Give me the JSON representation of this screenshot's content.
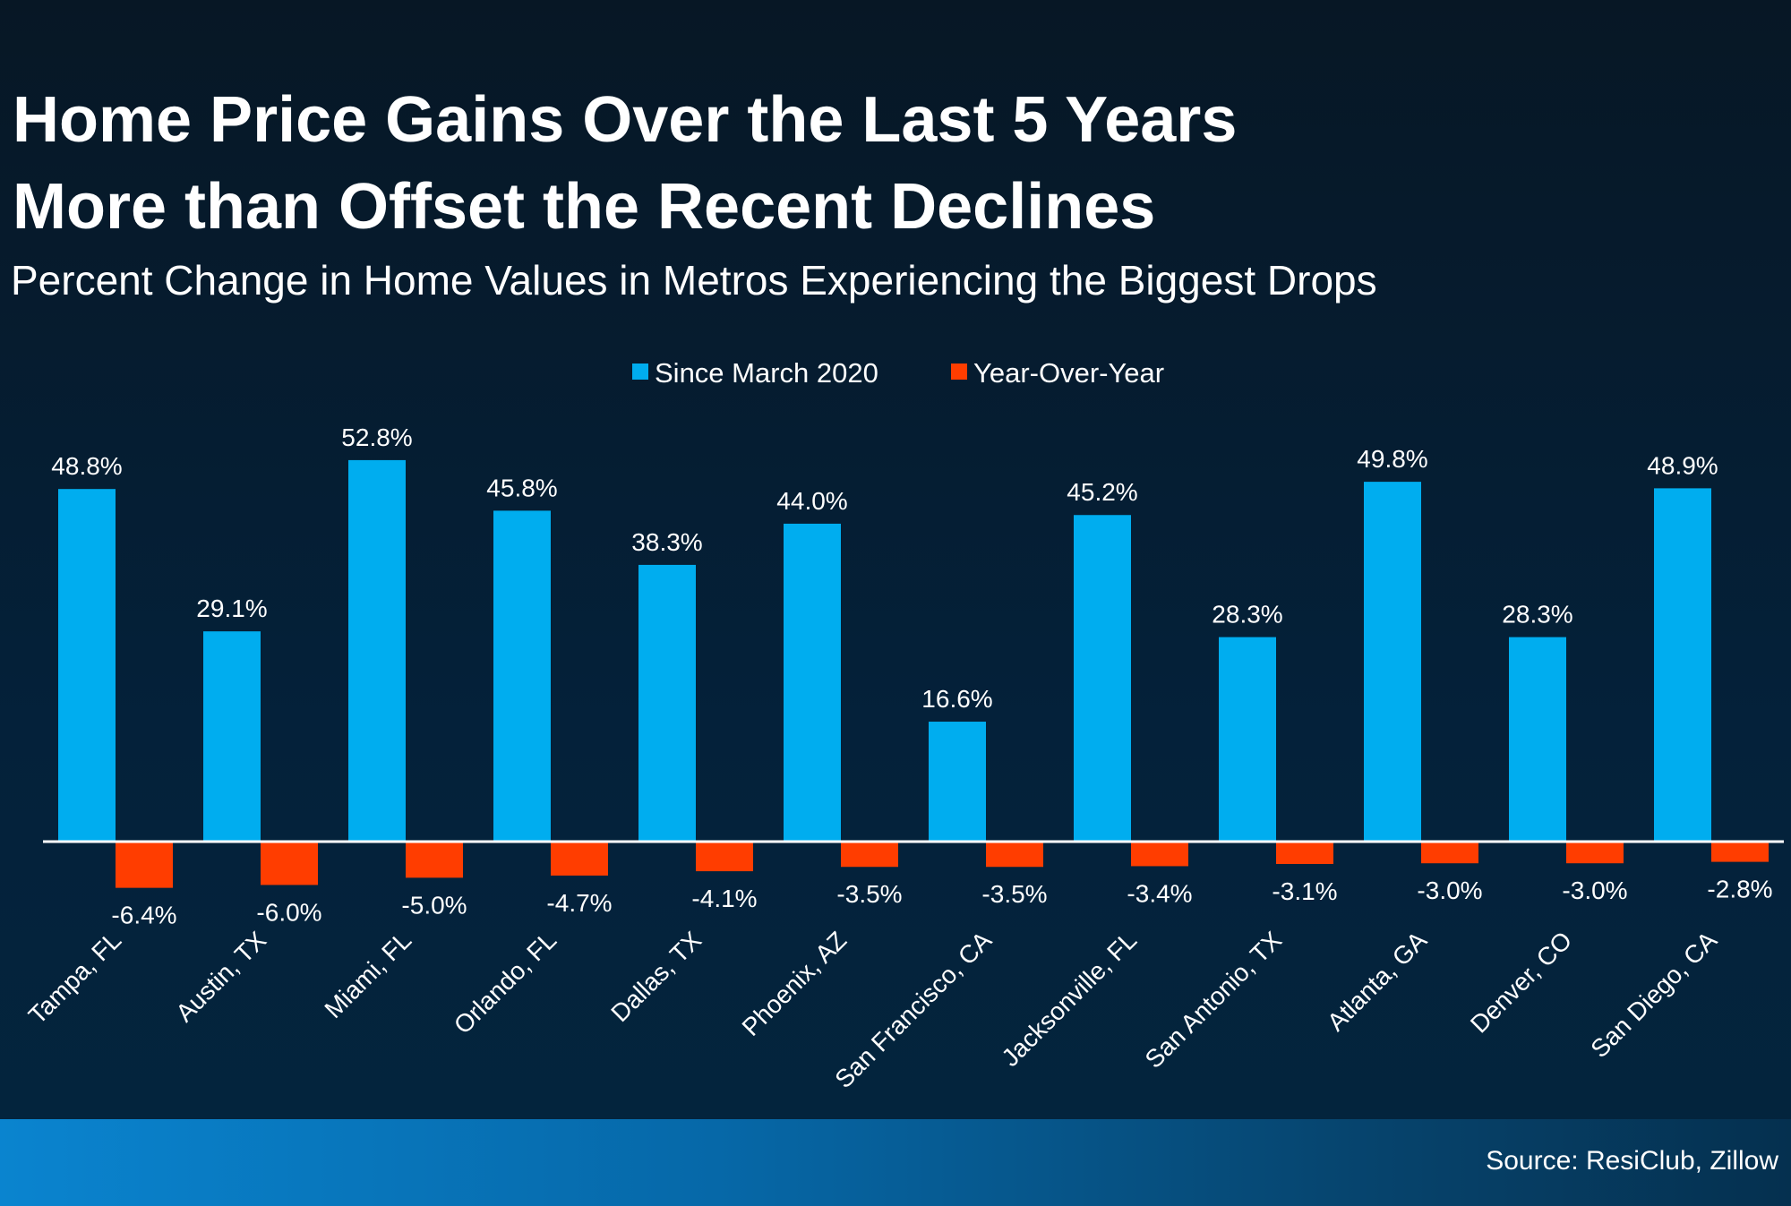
{
  "chart_data": {
    "type": "bar",
    "title": "Home Price Gains Over the Last 5 Years More than Offset the Recent Declines",
    "title_lines": [
      "Home Price Gains Over the Last 5 Years",
      "More than Offset the Recent Declines"
    ],
    "subtitle": "Percent Change in Home Values in Metros Experiencing the Biggest Drops",
    "categories": [
      "Tampa, FL",
      "Austin, TX",
      "Miami, FL",
      "Orlando, FL",
      "Dallas, TX",
      "Phoenix, AZ",
      "San Francisco, CA",
      "Jacksonville, FL",
      "San Antonio, TX",
      "Atlanta, GA",
      "Denver, CO",
      "San Diego, CA"
    ],
    "series": [
      {
        "name": "Since March 2020",
        "color": "#00adef",
        "values": [
          48.8,
          29.1,
          52.8,
          45.8,
          38.3,
          44.0,
          16.6,
          45.2,
          28.3,
          49.8,
          28.3,
          48.9
        ],
        "labels": [
          "48.8%",
          "29.1%",
          "52.8%",
          "45.8%",
          "38.3%",
          "44.0%",
          "16.6%",
          "45.2%",
          "28.3%",
          "49.8%",
          "28.3%",
          "48.9%"
        ]
      },
      {
        "name": "Year-Over-Year",
        "color": "#ff3d00",
        "values": [
          -6.4,
          -6.0,
          -5.0,
          -4.7,
          -4.1,
          -3.5,
          -3.5,
          -3.4,
          -3.1,
          -3.0,
          -3.0,
          -2.8
        ],
        "labels": [
          "-6.4%",
          "-6.0%",
          "-5.0%",
          "-4.7%",
          "-4.1%",
          "-3.5%",
          "-3.5%",
          "-3.4%",
          "-3.1%",
          "-3.0%",
          "-3.0%",
          "-2.8%"
        ]
      }
    ],
    "legend_position": "top-center",
    "grid": false,
    "y_axis_visible": false,
    "xlabel": "",
    "ylabel": ""
  },
  "footer": {
    "source": "Source: ResiClub, Zillow"
  }
}
